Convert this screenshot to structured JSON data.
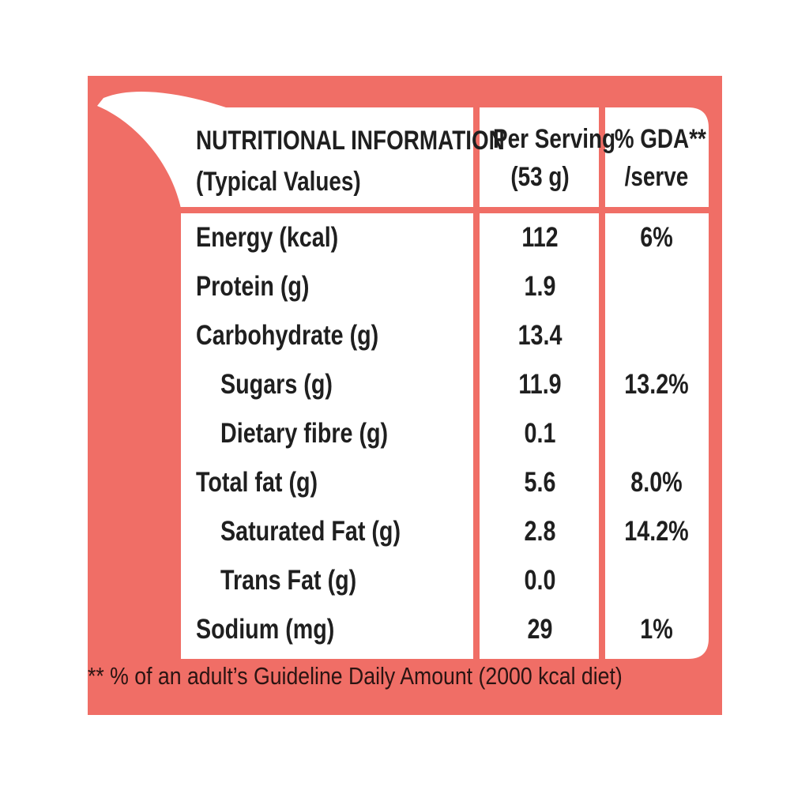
{
  "colors": {
    "panel": "#f06e66",
    "card": "#ffffff",
    "text": "#1f1f1f"
  },
  "header": {
    "title": "NUTRITIONAL INFORMATION",
    "subtitle": "(Typical Values)",
    "serving_label": "Per Serving",
    "serving_size": "(53 g)",
    "gda_label": "% GDA**",
    "gda_sub": "/serve"
  },
  "rows": [
    {
      "label": "Energy (kcal)",
      "value": "112",
      "gda": "6%",
      "indent": false
    },
    {
      "label": "Protein (g)",
      "value": "1.9",
      "gda": "",
      "indent": false
    },
    {
      "label": "Carbohydrate (g)",
      "value": "13.4",
      "gda": "",
      "indent": false
    },
    {
      "label": "Sugars (g)",
      "value": "11.9",
      "gda": "13.2%",
      "indent": true
    },
    {
      "label": "Dietary fibre (g)",
      "value": "0.1",
      "gda": "",
      "indent": true
    },
    {
      "label": "Total fat (g)",
      "value": "5.6",
      "gda": "8.0%",
      "indent": false
    },
    {
      "label": "Saturated Fat (g)",
      "value": "2.8",
      "gda": "14.2%",
      "indent": true
    },
    {
      "label": "Trans Fat (g)",
      "value": "0.0",
      "gda": "",
      "indent": true
    },
    {
      "label": "Sodium (mg)",
      "value": "29",
      "gda": "1%",
      "indent": false
    }
  ],
  "footnote": "** % of an adult’s Guideline Daily Amount (2000 kcal diet)"
}
